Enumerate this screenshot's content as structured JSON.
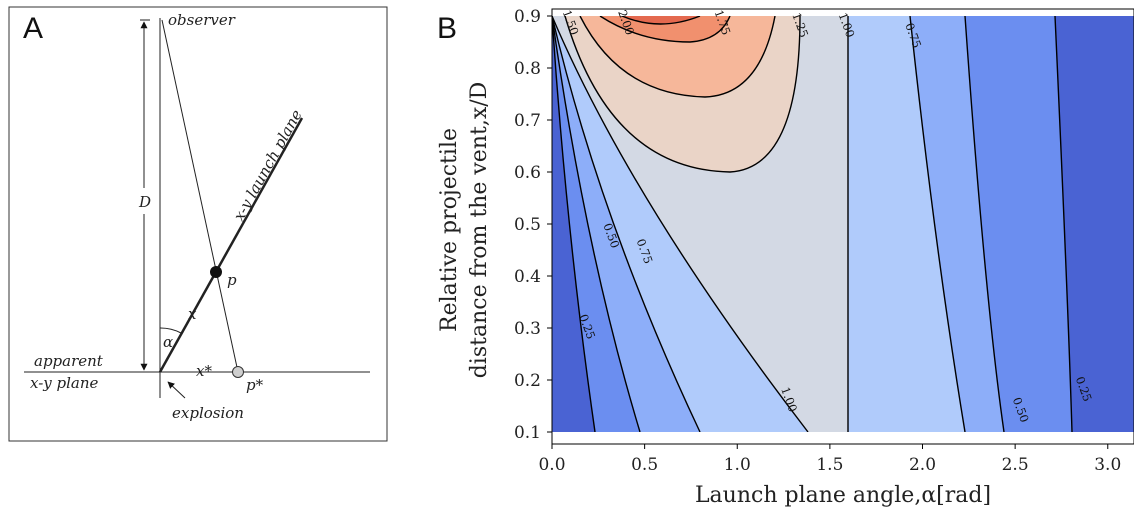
{
  "panels": {
    "a_letter": "A",
    "b_letter": "B"
  },
  "diagram": {
    "observer": "observer",
    "d": "D",
    "launch_plane": "x-y launch plane",
    "p": "p",
    "x": "x",
    "alpha": "α",
    "apparent_line1": "apparent",
    "apparent_line2": "x-y plane",
    "xstar": "x*",
    "pstar": "p*",
    "explosion": "explosion"
  },
  "chart_data": {
    "type": "contour",
    "title": "",
    "xlabel": "Launch plane angle,α[rad]",
    "ylabel_line1": "Relative projectile",
    "ylabel_line2": "distance from the vent,x/D",
    "xlim": [
      0,
      3.1416
    ],
    "ylim": [
      0.1,
      0.9
    ],
    "xticks": [
      0.0,
      0.5,
      1.0,
      1.5,
      2.0,
      2.5,
      3.0
    ],
    "xtick_labels": [
      "0.0",
      "0.5",
      "1.0",
      "1.5",
      "2.0",
      "2.5",
      "3.0"
    ],
    "yticks": [
      0.1,
      0.2,
      0.3,
      0.4,
      0.5,
      0.6,
      0.7,
      0.8,
      0.9
    ],
    "ytick_labels": [
      "0.1",
      "0.2",
      "0.3",
      "0.4",
      "0.5",
      "0.6",
      "0.7",
      "0.8",
      "0.9"
    ],
    "levels": [
      0,
      0.25,
      0.5,
      0.75,
      1.0,
      1.25,
      1.5,
      1.75,
      2.0,
      2.25
    ],
    "fill_colors": [
      "#4a63d3",
      "#6b8ef0",
      "#8daef9",
      "#b0cbfb",
      "#d3d9e4",
      "#ead4c7",
      "#f6b79a",
      "#f1906e",
      "#e4694f"
    ],
    "contour_labels": [
      {
        "text": "0.25",
        "x": 0.17,
        "y": 0.3
      },
      {
        "text": "0.50",
        "x": 0.3,
        "y": 0.475
      },
      {
        "text": "0.75",
        "x": 0.48,
        "y": 0.445
      },
      {
        "text": "1.00",
        "x": 1.26,
        "y": 0.16
      },
      {
        "text": "1.50",
        "x": 0.08,
        "y": 0.885
      },
      {
        "text": "2.00",
        "x": 0.38,
        "y": 0.885
      },
      {
        "text": "1.75",
        "x": 0.9,
        "y": 0.885
      },
      {
        "text": "1.25",
        "x": 1.32,
        "y": 0.88
      },
      {
        "text": "1.00",
        "x": 1.57,
        "y": 0.88
      },
      {
        "text": "0.75",
        "x": 1.93,
        "y": 0.86
      },
      {
        "text": "0.50",
        "x": 2.51,
        "y": 0.14
      },
      {
        "text": "0.25",
        "x": 2.85,
        "y": 0.18
      }
    ]
  }
}
